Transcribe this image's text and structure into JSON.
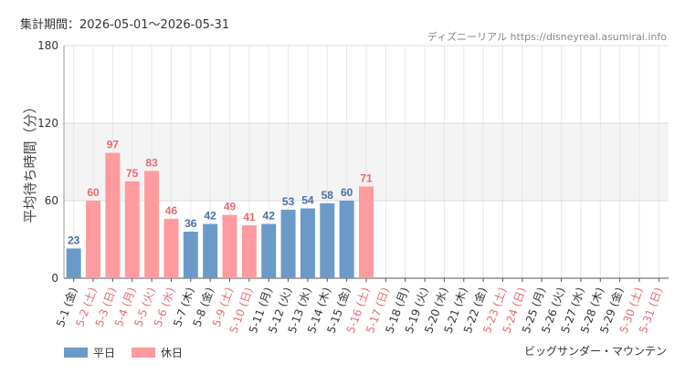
{
  "header": {
    "period_label": "集計期間：2026-05-01〜2026-05-31",
    "credit": "ディズニーリアル https://disneyreal.asumirai.info"
  },
  "footer": {
    "caption": "ビッグサンダー・マウンテン"
  },
  "colors": {
    "weekday": "#6b9ac8",
    "holiday": "#ff9a9e",
    "weekday_label": "#4a6fa5",
    "holiday_label": "#e86a73",
    "band": "#f4f4f4",
    "grid": "#e6e6e6"
  },
  "chart_data": {
    "type": "bar",
    "ylabel": "平均待ち時間（分）",
    "ylim": [
      0,
      180
    ],
    "yticks": [
      0,
      60,
      120,
      180
    ],
    "band": [
      60,
      120
    ],
    "grid": true,
    "legend_position": "bottom-left",
    "legend": [
      {
        "key": "weekday",
        "label": "平日"
      },
      {
        "key": "holiday",
        "label": "休日"
      }
    ],
    "categories": [
      "5-1 (金)",
      "5-2 (土)",
      "5-3 (日)",
      "5-4 (月)",
      "5-5 (火)",
      "5-6 (水)",
      "5-7 (木)",
      "5-8 (金)",
      "5-9 (土)",
      "5-10 (日)",
      "5-11 (月)",
      "5-12 (火)",
      "5-13 (水)",
      "5-14 (木)",
      "5-15 (金)",
      "5-16 (土)",
      "5-17 (日)",
      "5-18 (月)",
      "5-19 (火)",
      "5-20 (水)",
      "5-21 (木)",
      "5-22 (金)",
      "5-23 (土)",
      "5-24 (日)",
      "5-25 (月)",
      "5-26 (火)",
      "5-27 (水)",
      "5-28 (木)",
      "5-29 (金)",
      "5-30 (土)",
      "5-31 (日)"
    ],
    "day_type": [
      "weekday",
      "holiday",
      "holiday",
      "holiday",
      "holiday",
      "holiday",
      "weekday",
      "weekday",
      "holiday",
      "holiday",
      "weekday",
      "weekday",
      "weekday",
      "weekday",
      "weekday",
      "holiday",
      "holiday",
      "weekday",
      "weekday",
      "weekday",
      "weekday",
      "weekday",
      "holiday",
      "holiday",
      "weekday",
      "weekday",
      "weekday",
      "weekday",
      "weekday",
      "holiday",
      "holiday"
    ],
    "values": [
      23,
      60,
      97,
      75,
      83,
      46,
      36,
      42,
      49,
      41,
      42,
      53,
      54,
      58,
      60,
      71,
      null,
      null,
      null,
      null,
      null,
      null,
      null,
      null,
      null,
      null,
      null,
      null,
      null,
      null,
      null
    ]
  }
}
